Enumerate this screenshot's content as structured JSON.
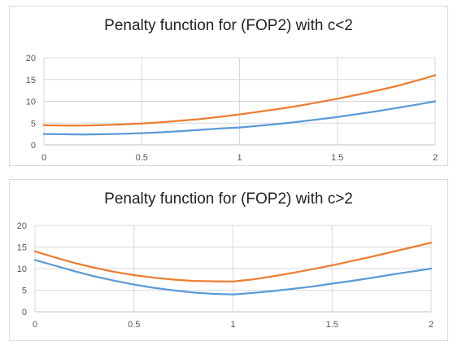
{
  "chart_data": [
    {
      "type": "line",
      "title": "Penalty function for (FOP2) with c<2",
      "xlabel": "",
      "ylabel": "",
      "xlim": [
        0,
        2
      ],
      "ylim": [
        0,
        20
      ],
      "x_ticks": [
        "0",
        "0.5",
        "1",
        "1.5",
        "2"
      ],
      "y_ticks": [
        "0",
        "5",
        "10",
        "15",
        "20"
      ],
      "grid": true,
      "series": [
        {
          "color": "#5b9bd5",
          "x": [
            0,
            0.1,
            0.2,
            0.3,
            0.4,
            0.5,
            0.6,
            0.7,
            0.8,
            0.9,
            1.0,
            1.1,
            1.2,
            1.3,
            1.4,
            1.5,
            1.6,
            1.7,
            1.8,
            1.9,
            2.0
          ],
          "y": [
            2.5,
            2.45,
            2.4,
            2.45,
            2.55,
            2.7,
            2.9,
            3.15,
            3.45,
            3.75,
            4.0,
            4.4,
            4.8,
            5.3,
            5.85,
            6.4,
            7.05,
            7.7,
            8.45,
            9.2,
            10.0
          ]
        },
        {
          "color": "#ed7d31",
          "x": [
            0,
            0.1,
            0.2,
            0.3,
            0.4,
            0.5,
            0.6,
            0.7,
            0.8,
            0.9,
            1.0,
            1.1,
            1.2,
            1.3,
            1.4,
            1.5,
            1.6,
            1.7,
            1.8,
            1.9,
            2.0
          ],
          "y": [
            4.5,
            4.45,
            4.45,
            4.55,
            4.7,
            4.9,
            5.2,
            5.55,
            5.95,
            6.45,
            7.0,
            7.6,
            8.25,
            8.95,
            9.75,
            10.6,
            11.5,
            12.45,
            13.45,
            14.7,
            16.0
          ]
        }
      ]
    },
    {
      "type": "line",
      "title": "Penalty function for (FOP2) with c>2",
      "xlabel": "",
      "ylabel": "",
      "xlim": [
        0,
        2
      ],
      "ylim": [
        0,
        20
      ],
      "x_ticks": [
        "0",
        "0.5",
        "1",
        "1.5",
        "2"
      ],
      "y_ticks": [
        "0",
        "5",
        "10",
        "15",
        "20"
      ],
      "grid": true,
      "series": [
        {
          "color": "#5b9bd5",
          "x": [
            0,
            0.1,
            0.2,
            0.3,
            0.4,
            0.5,
            0.6,
            0.7,
            0.8,
            0.9,
            1.0,
            1.1,
            1.2,
            1.3,
            1.4,
            1.5,
            1.6,
            1.7,
            1.8,
            1.9,
            2.0
          ],
          "y": [
            12.0,
            10.7,
            9.4,
            8.2,
            7.2,
            6.3,
            5.55,
            4.95,
            4.45,
            4.15,
            4.0,
            4.35,
            4.8,
            5.3,
            5.85,
            6.5,
            7.15,
            7.85,
            8.6,
            9.3,
            10.0
          ]
        },
        {
          "color": "#ed7d31",
          "x": [
            0,
            0.1,
            0.2,
            0.3,
            0.4,
            0.5,
            0.6,
            0.7,
            0.8,
            0.9,
            1.0,
            1.1,
            1.2,
            1.3,
            1.4,
            1.5,
            1.6,
            1.7,
            1.8,
            1.9,
            2.0
          ],
          "y": [
            14.0,
            12.6,
            11.3,
            10.2,
            9.25,
            8.5,
            7.9,
            7.45,
            7.15,
            7.05,
            7.0,
            7.5,
            8.2,
            9.0,
            9.85,
            10.75,
            11.75,
            12.75,
            13.85,
            14.9,
            16.0
          ]
        }
      ]
    }
  ]
}
